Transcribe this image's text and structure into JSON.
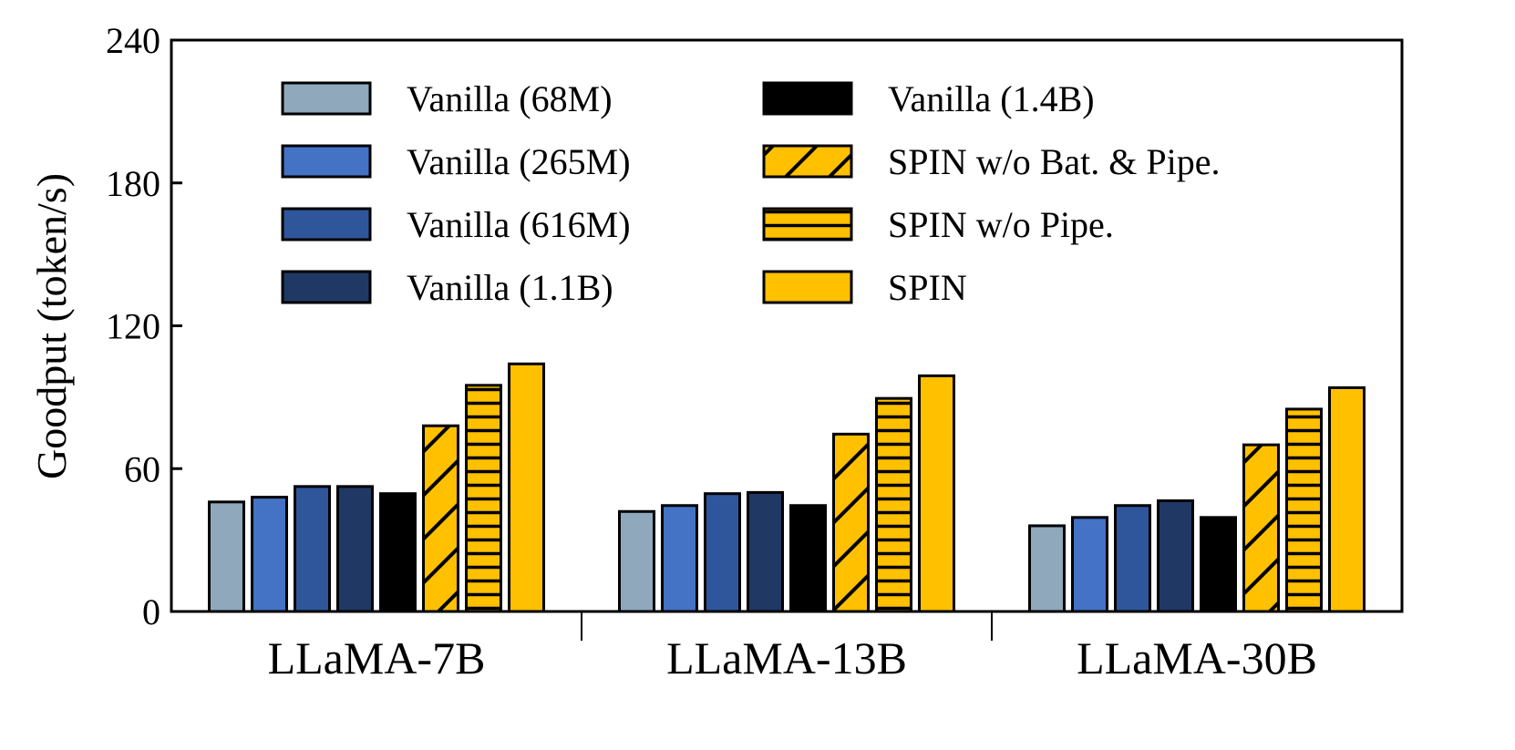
{
  "chart_data": {
    "type": "bar",
    "title": "",
    "xlabel": "",
    "ylabel": "Goodput (token/s)",
    "ylim": [
      0,
      240
    ],
    "yticks": [
      0,
      60,
      120,
      180,
      240
    ],
    "grid": false,
    "legend_position": "top",
    "categories": [
      "LLaMA-7B",
      "LLaMA-13B",
      "LLaMA-30B"
    ],
    "series": [
      {
        "name": "Vanilla (68M)",
        "color": "#90A8BC",
        "pattern": "none",
        "values": [
          46,
          42,
          36
        ]
      },
      {
        "name": "Vanilla (265M)",
        "color": "#4472C4",
        "pattern": "none",
        "values": [
          48,
          44.5,
          39.5
        ]
      },
      {
        "name": "Vanilla (616M)",
        "color": "#2F569B",
        "pattern": "none",
        "values": [
          52.5,
          49.5,
          44.5
        ]
      },
      {
        "name": "Vanilla (1.1B)",
        "color": "#203864",
        "pattern": "none",
        "values": [
          52.5,
          50,
          46.5
        ]
      },
      {
        "name": "Vanilla (1.4B)",
        "color": "#000000",
        "pattern": "none",
        "values": [
          49.5,
          44.5,
          39.5
        ]
      },
      {
        "name": "SPIN w/o Bat. & Pipe.",
        "color": "#FFC000",
        "pattern": "diagonal",
        "values": [
          78,
          74.5,
          70
        ]
      },
      {
        "name": "SPIN w/o Pipe.",
        "color": "#FFC000",
        "pattern": "horizontal",
        "values": [
          95,
          89.5,
          85
        ]
      },
      {
        "name": "SPIN",
        "color": "#FFC000",
        "pattern": "none",
        "values": [
          104,
          99,
          94
        ]
      }
    ]
  }
}
